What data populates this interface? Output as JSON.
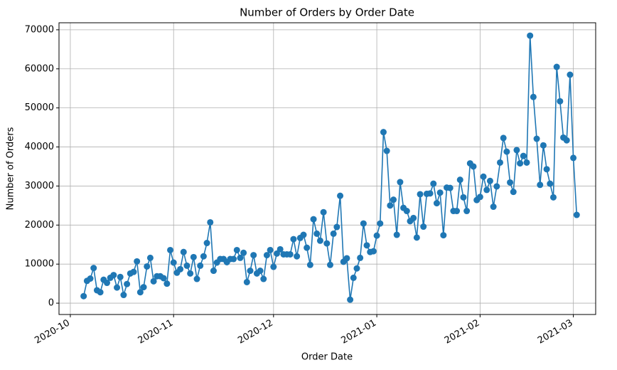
{
  "chart_data": {
    "type": "line",
    "title": "Number of Orders by Order Date",
    "x_label": "Order Date",
    "y_label": "Number of Orders",
    "color": "#1f77b4",
    "grid": true,
    "x": [
      4,
      5,
      6,
      7,
      8,
      9,
      10,
      11,
      12,
      13,
      14,
      15,
      16,
      17,
      18,
      19,
      20,
      21,
      22,
      23,
      24,
      25,
      26,
      27,
      28,
      29,
      30,
      31,
      32,
      33,
      34,
      35,
      36,
      37,
      38,
      39,
      40,
      41,
      42,
      43,
      44,
      45,
      46,
      47,
      48,
      49,
      50,
      51,
      52,
      53,
      54,
      55,
      56,
      57,
      58,
      59,
      60,
      61,
      62,
      63,
      64,
      65,
      66,
      67,
      68,
      69,
      70,
      71,
      72,
      73,
      74,
      75,
      76,
      77,
      78,
      79,
      80,
      81,
      82,
      83,
      84,
      85,
      86,
      87,
      88,
      89,
      90,
      91,
      92,
      93,
      94,
      95,
      96,
      97,
      98,
      99,
      100,
      101,
      102,
      103,
      104,
      105,
      106,
      107,
      108,
      109,
      110,
      111,
      112,
      113,
      114,
      115,
      116,
      117,
      118,
      119,
      120,
      121,
      122,
      123,
      124,
      125,
      126,
      127,
      128,
      129,
      130,
      131,
      132,
      133,
      134,
      135,
      136,
      137,
      138,
      139,
      140,
      141,
      142,
      143,
      144,
      145,
      146,
      147,
      148,
      149,
      150,
      151,
      152
    ],
    "values": [
      1800,
      5700,
      6300,
      9000,
      3300,
      2800,
      6000,
      5200,
      6500,
      7200,
      4000,
      6700,
      2100,
      4900,
      7600,
      8000,
      10700,
      2800,
      4100,
      9400,
      11600,
      5600,
      6900,
      6900,
      6400,
      5000,
      13600,
      10400,
      7800,
      8700,
      13100,
      9600,
      7600,
      11800,
      6200,
      9600,
      12000,
      15400,
      20700,
      8300,
      10400,
      11300,
      11300,
      10500,
      11300,
      11300,
      13600,
      11600,
      12900,
      5400,
      8300,
      12300,
      7600,
      8300,
      6200,
      12300,
      13600,
      9300,
      12700,
      13800,
      12500,
      12500,
      12500,
      16400,
      12000,
      16700,
      17500,
      14200,
      9800,
      21500,
      17800,
      16000,
      23300,
      15300,
      9800,
      17800,
      19500,
      27500,
      10600,
      11500,
      900,
      6500,
      8900,
      11600,
      20400,
      14800,
      13100,
      13300,
      17300,
      20400,
      43800,
      39000,
      25000,
      26500,
      17500,
      31000,
      24400,
      23600,
      21000,
      21800,
      16800,
      27900,
      19600,
      28000,
      28100,
      30600,
      25600,
      28300,
      17400,
      29600,
      29500,
      23600,
      23600,
      31600,
      27100,
      23600,
      35800,
      35000,
      26400,
      27200,
      32400,
      29000,
      31300,
      24700,
      29900,
      36000,
      42300,
      38800,
      30900,
      28500,
      39200,
      35800,
      37700,
      36000,
      68500,
      52800,
      42100,
      30300,
      40400,
      34300,
      30600,
      27100,
      60500,
      51700,
      42400,
      41700,
      58500,
      37200,
      22600
    ],
    "xlim": [
      -3.4,
      157.7
    ],
    "xticks": [
      {
        "value": 0,
        "label": "2020-10"
      },
      {
        "value": 31,
        "label": "2020-11"
      },
      {
        "value": 61,
        "label": "2020-12"
      },
      {
        "value": 92,
        "label": "2021-01"
      },
      {
        "value": 123,
        "label": "2021-02"
      },
      {
        "value": 151,
        "label": "2021-03"
      }
    ],
    "ylim": [
      -2900,
      71800
    ],
    "yticks": [
      0,
      10000,
      20000,
      30000,
      40000,
      50000,
      60000,
      70000
    ]
  }
}
